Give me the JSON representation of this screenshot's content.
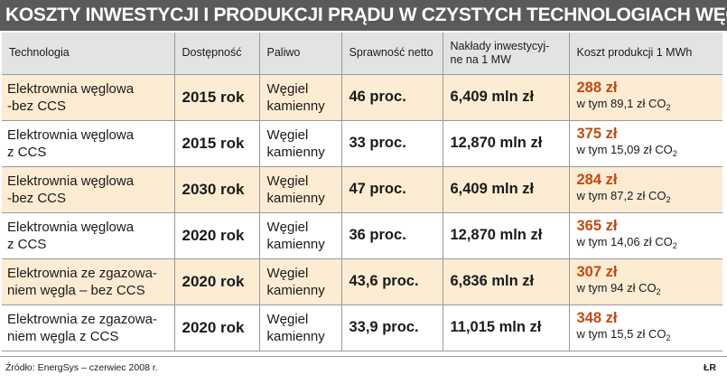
{
  "title": "KOSZTY INWESTYCJI I PRODUKCJI PRĄDU W CZYSTYCH TECHNOLOGIACH WĘGLOWYCH",
  "headers": {
    "technology": "Technologia",
    "availability": "Dostępność",
    "fuel": "Paliwo",
    "efficiency": "Sprawność netto",
    "capex_line1": "Nakłady inwestycyj-",
    "capex_line2": "ne na 1 MW",
    "cost": "Koszt produkcji 1 MWh"
  },
  "chart_data": {
    "type": "table",
    "title": "KOSZTY INWESTYCJI I PRODUKCJI PRĄDU W CZYSTYCH TECHNOLOGIACH WĘGLOWYCH",
    "columns": [
      "Technologia",
      "Dostępność",
      "Paliwo",
      "Sprawność netto",
      "Nakłady inwestycyjne na 1 MW",
      "Koszt produkcji 1 MWh"
    ],
    "rows": [
      {
        "tech_line1": "Elektrownia węglowa",
        "tech_line2": "-bez CCS",
        "year": "2015 rok",
        "fuel_line1": "Węgiel",
        "fuel_line2": "kamienny",
        "efficiency": "46 proc.",
        "capex": "6,409 mln zł",
        "cost": "288 zł",
        "co2": "w tym 89,1 zł CO",
        "co2_sub": "2"
      },
      {
        "tech_line1": "Elektrownia węglowa",
        "tech_line2": "z CCS",
        "year": "2015 rok",
        "fuel_line1": "Węgiel",
        "fuel_line2": "kamienny",
        "efficiency": "33 proc.",
        "capex": "12,870 mln zł",
        "cost": "375 zł",
        "co2": "w tym 15,09 zł CO",
        "co2_sub": "2"
      },
      {
        "tech_line1": "Elektrownia węglowa",
        "tech_line2": "-bez CCS",
        "year": "2030 rok",
        "fuel_line1": "Węgiel",
        "fuel_line2": "kamienny",
        "efficiency": "47 proc.",
        "capex": "6,409 mln zł",
        "cost": "284 zł",
        "co2": "w tym 87,2 zł CO",
        "co2_sub": "2"
      },
      {
        "tech_line1": "Elektrownia węglowa",
        "tech_line2": "z CCS",
        "year": "2020 rok",
        "fuel_line1": "Węgiel",
        "fuel_line2": "kamienny",
        "efficiency": "36 proc.",
        "capex": "12,870 mln zł",
        "cost": "365 zł",
        "co2": "w tym 14,06 zł CO",
        "co2_sub": "2"
      },
      {
        "tech_line1": "Elektrownia ze zgazowa-",
        "tech_line2": "niem węgla – bez CCS",
        "year": "2020 rok",
        "fuel_line1": "Węgiel",
        "fuel_line2": "kamienny",
        "efficiency": "43,6 proc.",
        "capex": "6,836 mln zł",
        "cost": "307 zł",
        "co2": "w tym 94 zł CO",
        "co2_sub": "2"
      },
      {
        "tech_line1": "Elektrownia ze zgazowa-",
        "tech_line2": "niem węgla z CCS",
        "year": "2020 rok",
        "fuel_line1": "Węgiel",
        "fuel_line2": "kamienny",
        "efficiency": "33,9 proc.",
        "capex": "11,015 mln zł",
        "cost": "348 zł",
        "co2": "w tym 15,5 zł CO",
        "co2_sub": "2"
      }
    ]
  },
  "source": "Źródło: EnergSys – czerwiec 2008 r.",
  "credit": "ŁR",
  "colors": {
    "title_bg": "#5a5a5a",
    "header_bg": "#e3e3e3",
    "row_shaded": "#fbecd3",
    "cost_accent": "#c44a12"
  }
}
